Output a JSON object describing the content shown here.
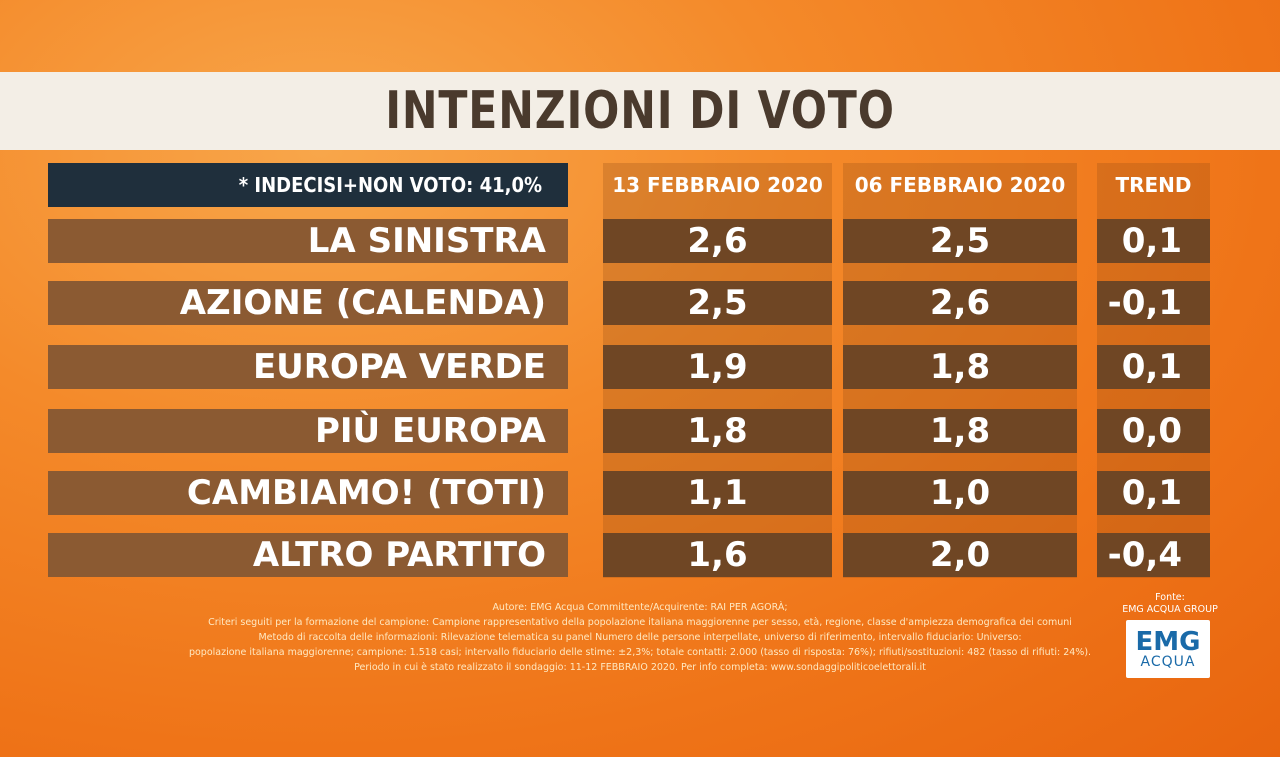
{
  "title": "INTENZIONI DI VOTO",
  "note": "* INDECISI+NON VOTO: 41,0%",
  "columns": [
    "13 FEBBRAIO 2020",
    "06 FEBBRAIO 2020",
    "TREND"
  ],
  "rows": [
    {
      "party": "LA SINISTRA",
      "v1": "2,6",
      "v2": "2,5",
      "trend": "0,1"
    },
    {
      "party": "AZIONE (CALENDA)",
      "v1": "2,5",
      "v2": "2,6",
      "trend": "-0,1"
    },
    {
      "party": "EUROPA VERDE",
      "v1": "1,9",
      "v2": "1,8",
      "trend": "0,1"
    },
    {
      "party": "PIÙ EUROPA",
      "v1": "1,8",
      "v2": "1,8",
      "trend": "0,0"
    },
    {
      "party": "CAMBIAMO! (TOTI)",
      "v1": "1,1",
      "v2": "1,0",
      "trend": "0,1"
    },
    {
      "party": "ALTRO PARTITO",
      "v1": "1,6",
      "v2": "2,0",
      "trend": "-0,4"
    }
  ],
  "footnote": [
    "Autore: EMG Acqua Committente/Acquirente: RAI PER AGORÀ;",
    "Criteri seguiti per la formazione del campione: Campione rappresentativo della popolazione italiana maggiorenne per sesso, età, regione, classe d'ampiezza demografica dei comuni",
    "Metodo di raccolta delle informazioni: Rilevazione telematica su panel Numero delle persone interpellate, universo di riferimento, intervallo fiduciario: Universo:",
    "popolazione italiana maggiorenne; campione: 1.518 casi; intervallo fiduciario delle stime: ±2,3%; totale contatti: 2.000 (tasso di risposta: 76%); rifiuti/sostituzioni: 482 (tasso di rifiuti: 24%).",
    "Periodo in cui è stato realizzato il sondaggio: 11-12 FEBBRAIO 2020. Per info completa: www.sondaggipoliticoelettorali.it"
  ],
  "source": {
    "label": "Fonte:",
    "name": "EMG ACQUA GROUP",
    "logo_top": "EMG",
    "logo_bottom": "ACQUA"
  },
  "colors": {
    "background": "#ef7418",
    "title_band": "#f3eee6",
    "title_text": "#4a3a2d",
    "note_bg": "#1f2f3c",
    "row_bg": "#8b5a32",
    "cell_bg": "#6f4624"
  },
  "chart_data": {
    "type": "table",
    "title": "INTENZIONI DI VOTO",
    "columns": [
      "13 FEBBRAIO 2020",
      "06 FEBBRAIO 2020",
      "TREND"
    ],
    "categories": [
      "LA SINISTRA",
      "AZIONE (CALENDA)",
      "EUROPA VERDE",
      "PIÙ EUROPA",
      "CAMBIAMO! (TOTI)",
      "ALTRO PARTITO"
    ],
    "series": [
      {
        "name": "13 FEBBRAIO 2020",
        "values": [
          2.6,
          2.5,
          1.9,
          1.8,
          1.1,
          1.6
        ]
      },
      {
        "name": "06 FEBBRAIO 2020",
        "values": [
          2.5,
          2.6,
          1.8,
          1.8,
          1.0,
          2.0
        ]
      },
      {
        "name": "TREND",
        "values": [
          0.1,
          -0.1,
          0.1,
          0.0,
          0.1,
          -0.4
        ]
      }
    ]
  }
}
